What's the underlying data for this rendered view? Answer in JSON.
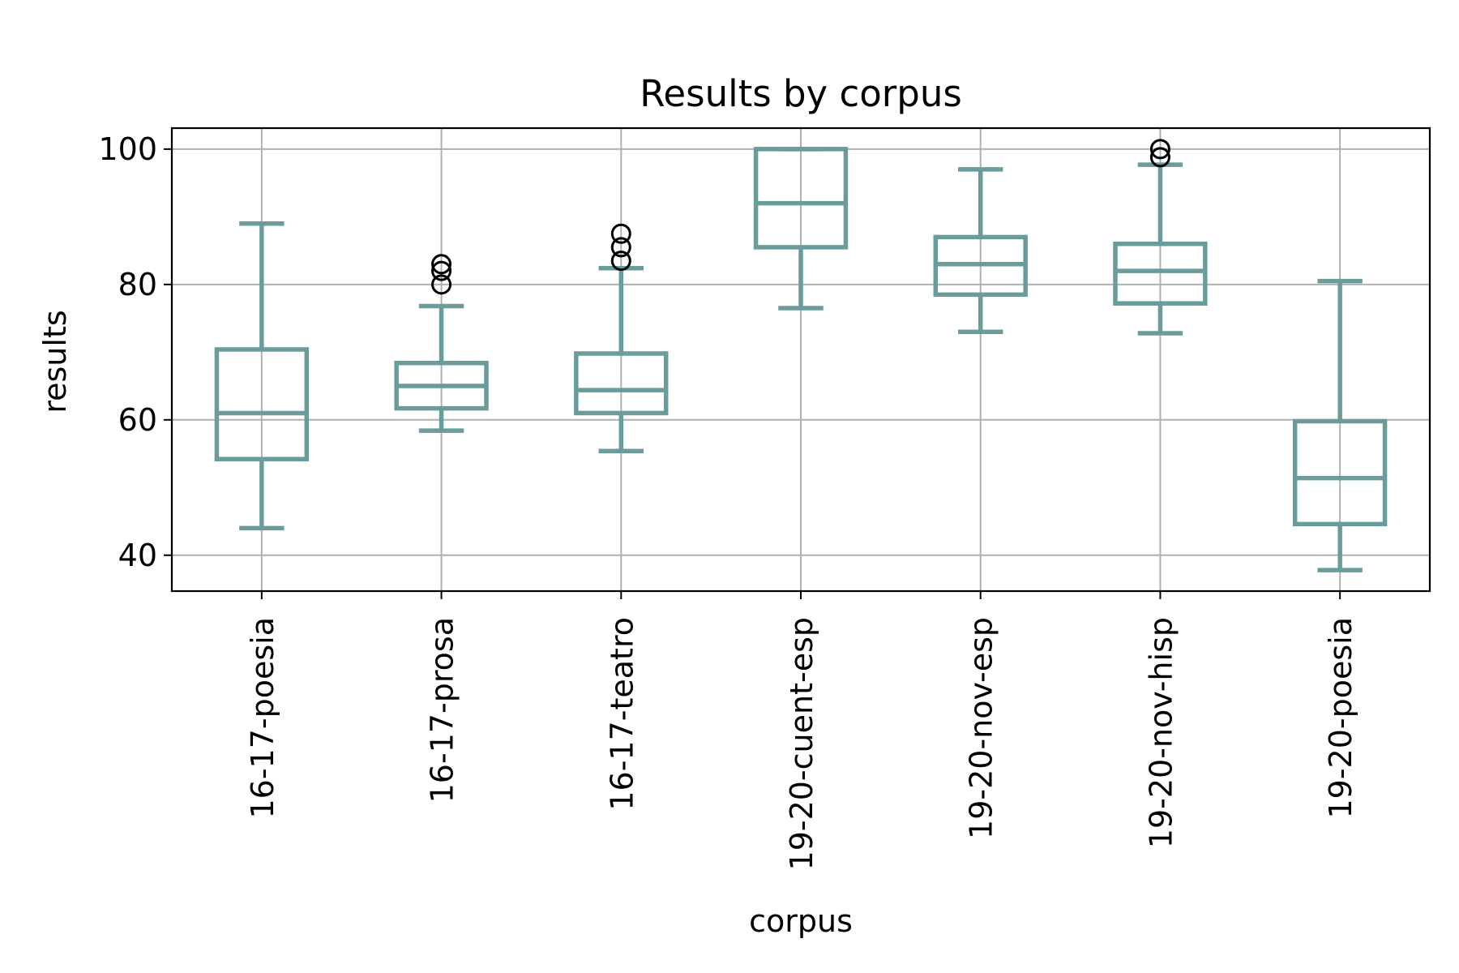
{
  "chart_data": {
    "type": "box",
    "title": "Results by corpus",
    "xlabel": "corpus",
    "ylabel": "results",
    "ylim": [
      34.7,
      103.1
    ],
    "yticks": [
      40,
      60,
      80,
      100
    ],
    "grid": true,
    "box_color": "#6a9c9c",
    "categories": [
      "16-17-poesia",
      "16-17-prosa",
      "16-17-teatro",
      "19-20-cuent-esp",
      "19-20-nov-esp",
      "19-20-nov-hisp",
      "19-20-poesia"
    ],
    "boxes": [
      {
        "category": "16-17-poesia",
        "whisker_low": 44,
        "q1": 54.2,
        "median": 61,
        "q3": 70.4,
        "whisker_high": 89,
        "outliers": []
      },
      {
        "category": "16-17-prosa",
        "whisker_low": 58.4,
        "q1": 61.7,
        "median": 65,
        "q3": 68.4,
        "whisker_high": 76.8,
        "outliers": [
          80,
          82,
          83
        ]
      },
      {
        "category": "16-17-teatro",
        "whisker_low": 55.4,
        "q1": 61,
        "median": 64.4,
        "q3": 69.8,
        "whisker_high": 82.4,
        "outliers": [
          83.5,
          85.5,
          87.5
        ]
      },
      {
        "category": "19-20-cuent-esp",
        "whisker_low": 76.5,
        "q1": 85.5,
        "median": 92,
        "q3": 100,
        "whisker_high": 100,
        "outliers": []
      },
      {
        "category": "19-20-nov-esp",
        "whisker_low": 73,
        "q1": 78.5,
        "median": 83,
        "q3": 87,
        "whisker_high": 97,
        "outliers": []
      },
      {
        "category": "19-20-nov-hisp",
        "whisker_low": 72.8,
        "q1": 77.2,
        "median": 82,
        "q3": 86,
        "whisker_high": 97.7,
        "outliers": [
          98.8,
          100
        ]
      },
      {
        "category": "19-20-poesia",
        "whisker_low": 37.8,
        "q1": 44.6,
        "median": 51.4,
        "q3": 59.8,
        "whisker_high": 80.5,
        "outliers": []
      }
    ]
  }
}
